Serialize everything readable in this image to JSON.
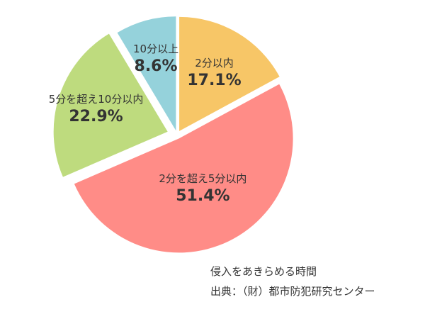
{
  "chart_data": {
    "type": "pie",
    "start": "top",
    "direction": "clockwise",
    "exploded": true,
    "slices": [
      {
        "label": "2分以内",
        "value": 17.1,
        "value_text": "17.1%",
        "color": "#F7C667"
      },
      {
        "label": "2分を超え5分以内",
        "value": 51.4,
        "value_text": "51.4%",
        "color": "#FF8C87"
      },
      {
        "label": "5分を超え10分以内",
        "value": 22.9,
        "value_text": "22.9%",
        "color": "#BEDB7E"
      },
      {
        "label": "10分以上",
        "value": 8.6,
        "value_text": "8.6%",
        "color": "#95D2DB"
      }
    ]
  },
  "captions": {
    "title": "侵入をあきらめる時間",
    "source": "出典：（財）都市防犯研究センター"
  }
}
